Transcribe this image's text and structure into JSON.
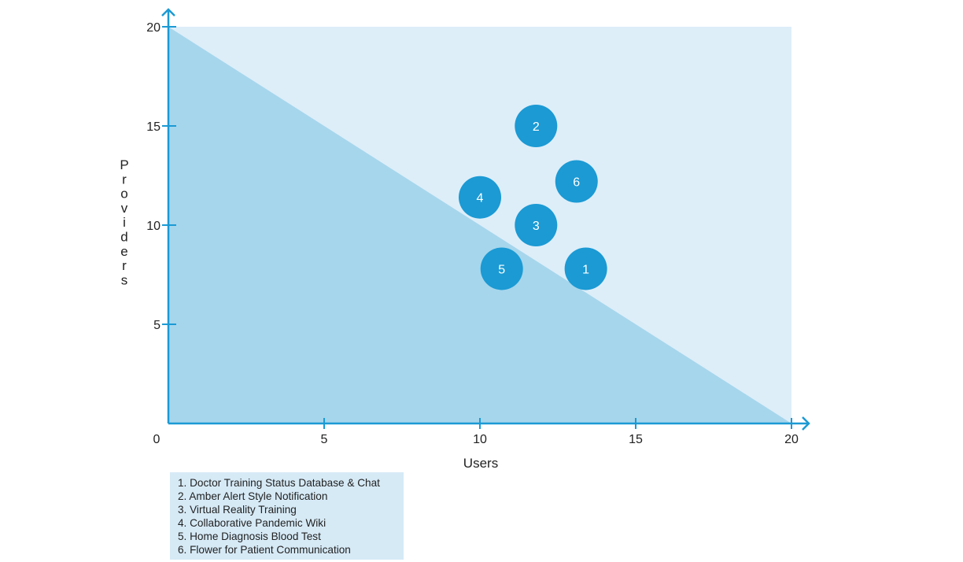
{
  "chart_data": {
    "type": "scatter",
    "title": "",
    "xlabel": "Users",
    "ylabel": "Providers",
    "xlim": [
      0,
      20
    ],
    "ylim": [
      0,
      20
    ],
    "xticks": [
      "0",
      "5",
      "10",
      "15",
      "20"
    ],
    "yticks": [
      "5",
      "10",
      "15",
      "20"
    ],
    "grid": false,
    "regions": [
      {
        "name": "upper",
        "color": "#ddeef9"
      },
      {
        "name": "below diagonal from (0,20) to (20,0)",
        "color": "#a6d6ec"
      }
    ],
    "bubble_color": "#1b9ad4",
    "points": [
      {
        "label": "1",
        "x": 13.4,
        "y": 7.8
      },
      {
        "label": "2",
        "x": 11.8,
        "y": 15.0
      },
      {
        "label": "3",
        "x": 11.8,
        "y": 10.0
      },
      {
        "label": "4",
        "x": 10.0,
        "y": 11.4
      },
      {
        "label": "5",
        "x": 10.7,
        "y": 7.8
      },
      {
        "label": "6",
        "x": 13.1,
        "y": 12.2
      }
    ],
    "legend_placement": "bottom-left",
    "legend": [
      "1. Doctor Training Status Database & Chat",
      "2. Amber Alert Style Notification",
      "3. Virtual Reality Training",
      "4. Collaborative Pandemic Wiki",
      "5. Home Diagnosis Blood Test",
      "6. Flower for Patient Communication"
    ]
  }
}
